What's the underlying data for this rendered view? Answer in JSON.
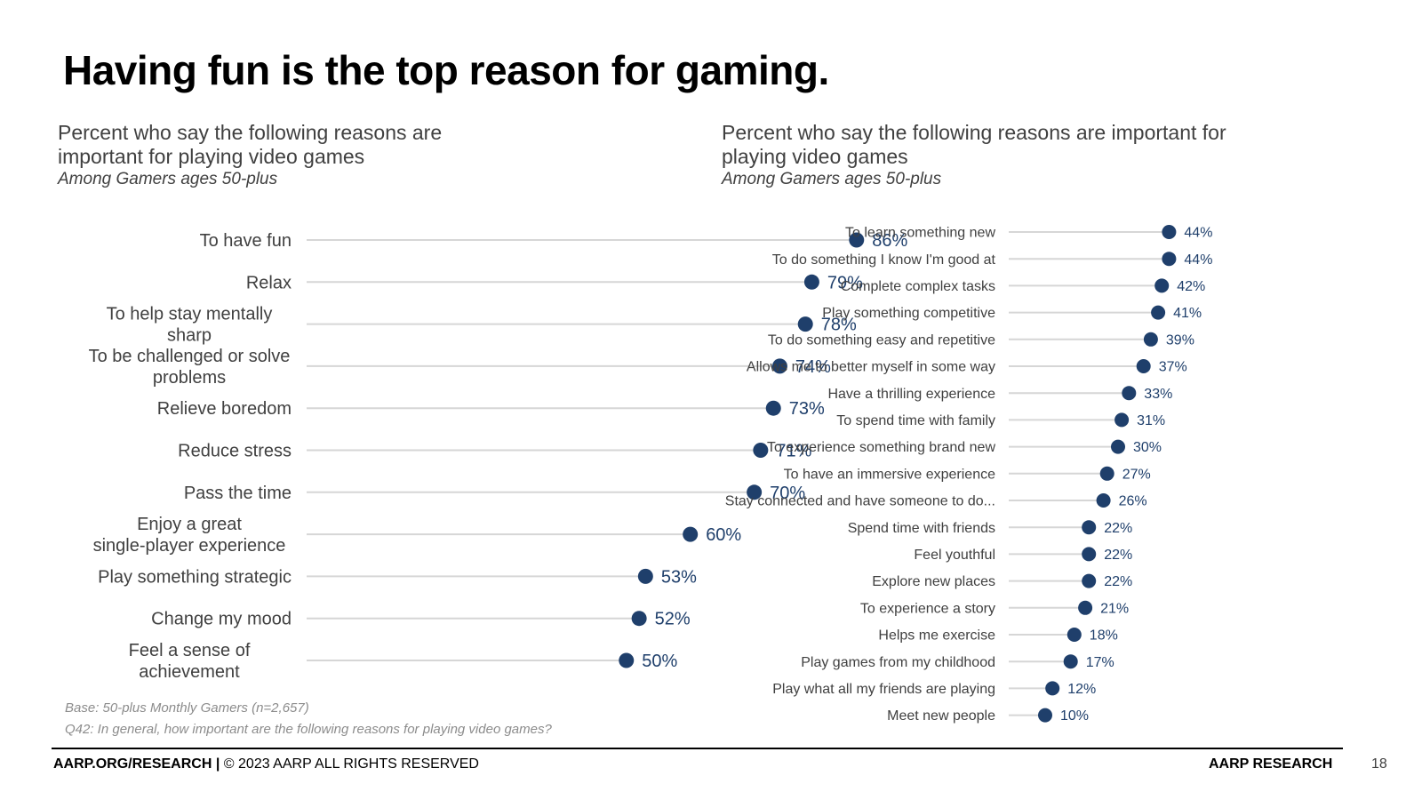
{
  "title": "Having fun is the top reason for gaming.",
  "left_panel": {
    "subtitle": "Percent who say the following reasons are important for playing video games",
    "note": "Among Gamers ages 50-plus"
  },
  "right_panel": {
    "subtitle": "Percent who say the following reasons are important for playing video games",
    "note": "Among Gamers ages 50-plus"
  },
  "base_note": "Base: 50-plus Monthly Gamers (n=2,657)",
  "question_note": "Q42: In general, how important are the following reasons for playing video games?",
  "footer": {
    "left_bold": "AARP.ORG/RESEARCH |",
    "left_text": "© 2023 AARP ALL RIGHTS RESERVED",
    "right": "AARP RESEARCH",
    "page": "18"
  },
  "colors": {
    "dot": "#1f3f6b",
    "line": "#d6d6d6",
    "label_value": "#1f3f6b"
  },
  "chart_data": [
    {
      "type": "dot",
      "title": "Percent who say the following reasons are important for playing video games",
      "unit": "%",
      "xlim": [
        0,
        100
      ],
      "categories": [
        "To have fun",
        "Relax",
        "To help stay mentally sharp",
        "To be challenged or solve problems",
        "Relieve boredom",
        "Reduce stress",
        "Pass the time",
        "Enjoy a great single-player experience",
        "Play something strategic",
        "Change my mood",
        "Feel a sense of achievement"
      ],
      "values": [
        86,
        79,
        78,
        74,
        73,
        71,
        70,
        60,
        53,
        52,
        50
      ]
    },
    {
      "type": "dot",
      "title": "Percent who say the following reasons are important for playing video games",
      "unit": "%",
      "xlim": [
        0,
        100
      ],
      "categories": [
        "To learn something new",
        "To do something I know I'm good at",
        "Complete complex tasks",
        "Play something competitive",
        "To do something easy and repetitive",
        "Allows me to better myself in some way",
        "Have a thrilling experience",
        "To spend time with family",
        "To experience something brand new",
        "To have an immersive experience",
        "Stay connected and have someone to do...",
        "Spend time with friends",
        "Feel youthful",
        "Explore new places",
        "To experience a story",
        "Helps me exercise",
        "Play games from my childhood",
        "Play what all my friends are playing",
        "Meet new people"
      ],
      "values": [
        44,
        44,
        42,
        41,
        39,
        37,
        33,
        31,
        30,
        27,
        26,
        22,
        22,
        22,
        21,
        18,
        17,
        12,
        10
      ]
    }
  ]
}
